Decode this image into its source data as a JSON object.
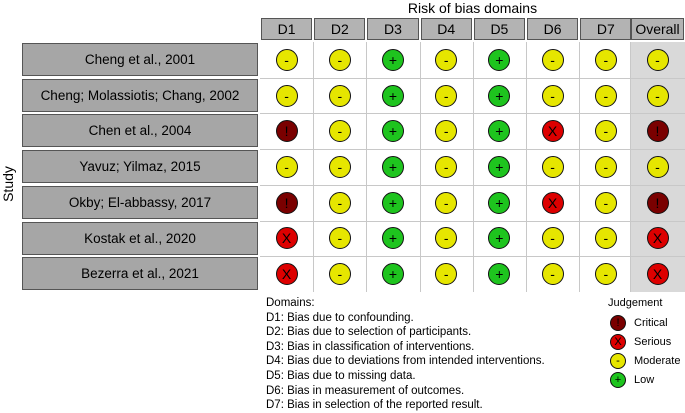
{
  "header": {
    "domains_title": "Risk of bias domains",
    "study_label": "Study",
    "columns": [
      "D1",
      "D2",
      "D3",
      "D4",
      "D5",
      "D6",
      "D7",
      "Overall"
    ]
  },
  "studies": [
    {
      "name": "Cheng et al., 2001",
      "judgements": [
        "moderate",
        "moderate",
        "low",
        "moderate",
        "low",
        "moderate",
        "moderate",
        "moderate"
      ]
    },
    {
      "name": "Cheng; Molassiotis; Chang, 2002",
      "judgements": [
        "moderate",
        "moderate",
        "low",
        "moderate",
        "low",
        "moderate",
        "moderate",
        "moderate"
      ]
    },
    {
      "name": "Chen et al., 2004",
      "judgements": [
        "critical",
        "moderate",
        "low",
        "moderate",
        "low",
        "serious",
        "moderate",
        "critical"
      ]
    },
    {
      "name": "Yavuz; Yilmaz, 2015",
      "judgements": [
        "moderate",
        "moderate",
        "low",
        "moderate",
        "low",
        "moderate",
        "moderate",
        "moderate"
      ]
    },
    {
      "name": "Okby; El-abbassy,  2017",
      "judgements": [
        "critical",
        "moderate",
        "low",
        "moderate",
        "low",
        "serious",
        "moderate",
        "critical"
      ]
    },
    {
      "name": "Kostak et al., 2020",
      "judgements": [
        "serious",
        "moderate",
        "low",
        "moderate",
        "low",
        "moderate",
        "moderate",
        "serious"
      ]
    },
    {
      "name": "Bezerra et al., 2021",
      "judgements": [
        "serious",
        "moderate",
        "low",
        "moderate",
        "low",
        "moderate",
        "moderate",
        "serious"
      ]
    }
  ],
  "symbols": {
    "low": "+",
    "moderate": "-",
    "serious": "X",
    "critical": "!"
  },
  "colors": {
    "low": "#1ec41e",
    "moderate": "#e6e600",
    "serious": "#dd0000",
    "critical": "#7a0000"
  },
  "domains_legend": {
    "title": "Domains:",
    "items": [
      "D1: Bias due to confounding.",
      "D2: Bias due to selection of participants.",
      "D3: Bias in classification of interventions.",
      "D4: Bias due to deviations from intended interventions.",
      "D5: Bias due to missing data.",
      "D6: Bias in measurement of outcomes.",
      "D7: Bias in selection of the reported result."
    ]
  },
  "judgement_legend": {
    "title": "Judgement",
    "items": [
      {
        "level": "critical",
        "label": "Critical"
      },
      {
        "level": "serious",
        "label": "Serious"
      },
      {
        "level": "moderate",
        "label": "Moderate"
      },
      {
        "level": "low",
        "label": "Low"
      }
    ]
  }
}
